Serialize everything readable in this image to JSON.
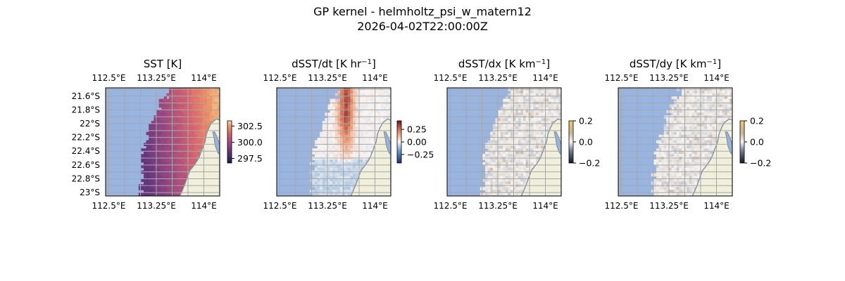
{
  "figure": {
    "title_line1": "GP kernel - helmholtz_psi_w_matern12",
    "title_line2": "2026-04-02T22:00:00Z"
  },
  "colors": {
    "ocean": "#98b4e0",
    "land": "#efefdb",
    "coast": "#7d8d9e",
    "grid": "#a8a8a8",
    "frame": "#000000"
  },
  "chart_data": [
    {
      "type": "heatmap",
      "title": "SST [K]",
      "title_sup": "",
      "title_end": "",
      "lon_ticks": [
        "112.5°E",
        "113.25°E",
        "114°E"
      ],
      "lon_values": [
        112.5,
        113.25,
        114.0
      ],
      "lat_ticks": [
        "21.6°S",
        "21.8°S",
        "22°S",
        "22.2°S",
        "22.4°S",
        "22.6°S",
        "22.8°S",
        "23°S"
      ],
      "lat_values": [
        -21.6,
        -21.8,
        -22.0,
        -22.2,
        -22.4,
        -22.6,
        -22.8,
        -23.0
      ],
      "xlim": [
        112.45,
        114.25
      ],
      "ylim": [
        -23.05,
        -21.48
      ],
      "colorbar": {
        "ticks": [
          "302.5",
          "300.0",
          "297.5"
        ],
        "values": [
          302.5,
          300.0,
          297.5
        ],
        "range": [
          296.8,
          303.3
        ],
        "cmap": "thermal"
      },
      "field": "sst",
      "grid": true
    },
    {
      "type": "heatmap",
      "title": "dSST/dt [K hr",
      "title_sup": "−1",
      "title_end": "]",
      "lon_ticks": [
        "112.5°E",
        "113.25°E",
        "114°E"
      ],
      "lon_values": [
        112.5,
        113.25,
        114.0
      ],
      "lat_ticks": [],
      "lat_values": [],
      "xlim": [
        112.45,
        114.25
      ],
      "ylim": [
        -23.05,
        -21.48
      ],
      "colorbar": {
        "ticks": [
          "0.25",
          "0.00",
          "−0.25"
        ],
        "values": [
          0.25,
          0.0,
          -0.25
        ],
        "range": [
          -0.42,
          0.42
        ],
        "cmap": "rdbu"
      },
      "field": "dt",
      "grid": true
    },
    {
      "type": "heatmap",
      "title": "dSST/dx [K km",
      "title_sup": "−1",
      "title_end": "]",
      "lon_ticks": [
        "112.5°E",
        "113.25°E",
        "114°E"
      ],
      "lon_values": [
        112.5,
        113.25,
        114.0
      ],
      "lat_ticks": [],
      "lat_values": [],
      "xlim": [
        112.45,
        114.25
      ],
      "ylim": [
        -23.05,
        -21.48
      ],
      "colorbar": {
        "ticks": [
          "0.2",
          "0.0",
          "−0.2"
        ],
        "values": [
          0.2,
          0.0,
          -0.2
        ],
        "range": [
          -0.2,
          0.2
        ],
        "cmap": "diff"
      },
      "field": "dx",
      "grid": true
    },
    {
      "type": "heatmap",
      "title": "dSST/dy [K km",
      "title_sup": "−1",
      "title_end": "]",
      "lon_ticks": [
        "112.5°E",
        "113.25°E",
        "114°E"
      ],
      "lon_values": [
        112.5,
        113.25,
        114.0
      ],
      "lat_ticks": [],
      "lat_values": [],
      "xlim": [
        112.45,
        114.25
      ],
      "ylim": [
        -23.05,
        -21.48
      ],
      "colorbar": {
        "ticks": [
          "0.2",
          "0.0",
          "−0.2"
        ],
        "values": [
          0.2,
          0.0,
          -0.2
        ],
        "range": [
          -0.2,
          0.2
        ],
        "cmap": "diff"
      },
      "field": "dy",
      "grid": true
    }
  ]
}
